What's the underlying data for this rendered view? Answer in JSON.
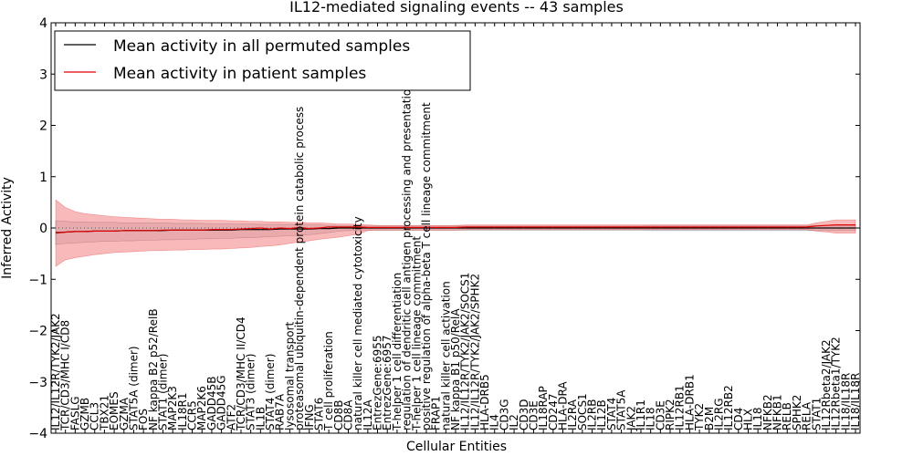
{
  "chart_data": {
    "type": "line",
    "title": "IL12-mediated signaling events -- 43 samples",
    "xlabel": "Cellular Entities",
    "ylabel": "Inferred Activity",
    "ylim": [
      -4,
      4
    ],
    "yticks": [
      "4",
      "3",
      "2",
      "1",
      "0",
      "−1",
      "−2",
      "−3",
      "−4"
    ],
    "grid": false,
    "legend_position": "top-left",
    "categories": [
      "IL12/IL12R/TYK2/JAK2",
      "TCR/CD3/MHC I/CD8",
      "FASLG",
      "GZMB",
      "CCL3",
      "TBX21",
      "EOMES",
      "GZMA",
      "STAT5A (dimer)",
      "FOS",
      "NF kappa B2 p52/RelB",
      "STAT1 (dimer)",
      "MAP2K3",
      "IL18R1",
      "CCR5",
      "MAP2K6",
      "GADD45B",
      "GADD45G",
      "ATF2",
      "TCR/CD3/MHC II/CD4",
      "STAT3 (dimer)",
      "IL1B",
      "STAT4 (dimer)",
      "RAB7A",
      "lysosomal transport",
      "proteasomal ubiquitin-dependent protein catabolic process",
      "IFNG",
      "STAT6",
      "T cell proliferation",
      "CD8B",
      "CD8A",
      "natural killer cell mediated cytotoxicity",
      "IL12A",
      "EntrezGene:6955",
      "EntrezGene:6957",
      "T-helper 1 cell differentiation",
      "regulation of dendritic cell antigen processing and presentation",
      "T-helper 1 cell lineage commitment",
      "positive regulation of alpha-beta T cell lineage commitment",
      "FRAP1",
      "natural killer cell activation",
      "NF kappa B1 p50/RelA",
      "IL12/IL12R/TYK2/JAK2/SOCS1",
      "IL12/IL12R/TYK2/JAK2/SPHK2",
      "HLA-DRB5",
      "IL4",
      "CD3G",
      "IL2",
      "CD3D",
      "CD3E",
      "IL18RAP",
      "CD247",
      "HLA-DRA",
      "IL2RA",
      "SOCS1",
      "IL2RB",
      "IL12B",
      "STAT4",
      "STAT5A",
      "JAK2",
      "IL1R1",
      "IL18",
      "CD3E",
      "RIPK2",
      "IL12RB1",
      "HLA-DRB1",
      "TYK2",
      "B2M",
      "IL2RG",
      "IL12RB2",
      "CD4",
      "HLX",
      "IL18",
      "NFKB2",
      "NFKB1",
      "RELB",
      "SPHK2",
      "RELA",
      "STAT1",
      "IL12Rbeta2/JAK2",
      "IL12Rbeta1/TYK2",
      "IL18/IL18R",
      "IL18/IL18R"
    ],
    "series": [
      {
        "name": "Mean activity in all permuted samples",
        "color": "#000000",
        "values": [
          -0.09,
          -0.08,
          -0.07,
          -0.07,
          -0.06,
          -0.06,
          -0.06,
          -0.05,
          -0.05,
          -0.05,
          -0.05,
          -0.05,
          -0.04,
          -0.04,
          -0.04,
          -0.04,
          -0.04,
          -0.04,
          -0.04,
          -0.03,
          -0.03,
          -0.03,
          -0.03,
          -0.02,
          -0.02,
          -0.02,
          -0.02,
          -0.01,
          -0.01,
          0.0,
          0.0,
          0.0,
          0.0,
          0.0,
          0.0,
          0.0,
          0.0,
          0.0,
          0.0,
          0.0,
          0.0,
          0.0,
          0.0,
          0.0,
          0.0,
          0.0,
          0.0,
          0.0,
          0.0,
          0.0,
          0.0,
          0.0,
          0.0,
          0.0,
          0.0,
          0.0,
          0.0,
          0.0,
          0.0,
          0.0,
          0.0,
          0.0,
          0.0,
          0.0,
          0.0,
          0.0,
          0.0,
          0.0,
          0.0,
          0.0,
          0.0,
          0.0,
          0.0,
          0.0,
          0.0,
          0.0,
          0.0,
          0.0,
          0.0,
          0.0,
          0.0,
          0.0,
          0.0
        ],
        "band_lower": [
          -0.32,
          -0.3,
          -0.29,
          -0.28,
          -0.27,
          -0.26,
          -0.26,
          -0.25,
          -0.25,
          -0.24,
          -0.24,
          -0.23,
          -0.23,
          -0.22,
          -0.22,
          -0.21,
          -0.21,
          -0.2,
          -0.2,
          -0.19,
          -0.19,
          -0.18,
          -0.17,
          -0.16,
          -0.15,
          -0.14,
          -0.13,
          -0.11,
          -0.09,
          -0.06,
          -0.05,
          -0.05,
          -0.04,
          -0.04,
          -0.04,
          -0.04,
          -0.04,
          -0.04,
          -0.04,
          -0.04,
          -0.04,
          -0.04,
          -0.04,
          -0.04,
          -0.04,
          -0.04,
          -0.04,
          -0.04,
          -0.04,
          -0.04,
          -0.04,
          -0.04,
          -0.04,
          -0.04,
          -0.04,
          -0.04,
          -0.04,
          -0.04,
          -0.04,
          -0.04,
          -0.04,
          -0.05,
          -0.05,
          -0.05,
          -0.05,
          -0.05,
          -0.05,
          -0.05,
          -0.05,
          -0.05,
          -0.05,
          -0.05,
          -0.05,
          -0.05,
          -0.05,
          -0.05,
          -0.05,
          -0.05,
          -0.05,
          -0.05,
          -0.05,
          -0.05,
          -0.05
        ],
        "band_upper": [
          0.14,
          0.13,
          0.12,
          0.12,
          0.11,
          0.11,
          0.11,
          0.1,
          0.1,
          0.1,
          0.1,
          0.1,
          0.09,
          0.09,
          0.09,
          0.09,
          0.08,
          0.08,
          0.08,
          0.08,
          0.08,
          0.07,
          0.07,
          0.07,
          0.07,
          0.06,
          0.06,
          0.06,
          0.05,
          0.05,
          0.05,
          0.04,
          0.04,
          0.04,
          0.04,
          0.04,
          0.04,
          0.04,
          0.04,
          0.04,
          0.04,
          0.04,
          0.04,
          0.04,
          0.04,
          0.04,
          0.04,
          0.04,
          0.04,
          0.04,
          0.04,
          0.04,
          0.04,
          0.04,
          0.04,
          0.04,
          0.04,
          0.04,
          0.04,
          0.04,
          0.04,
          0.05,
          0.05,
          0.05,
          0.05,
          0.05,
          0.05,
          0.05,
          0.05,
          0.05,
          0.05,
          0.05,
          0.05,
          0.05,
          0.05,
          0.05,
          0.05,
          0.05,
          0.05,
          0.05,
          0.05,
          0.05,
          0.05
        ],
        "band_color": "#c8c8d2"
      },
      {
        "name": "Mean activity in patient samples",
        "color": "#e00000",
        "values": [
          -0.1,
          -0.08,
          -0.07,
          -0.07,
          -0.06,
          -0.06,
          -0.06,
          -0.05,
          -0.05,
          -0.05,
          -0.05,
          -0.04,
          -0.04,
          -0.04,
          -0.04,
          -0.04,
          -0.03,
          -0.03,
          -0.03,
          -0.02,
          -0.01,
          0.0,
          -0.02,
          0.0,
          -0.01,
          0.01,
          -0.01,
          0.0,
          0.02,
          0.02,
          0.02,
          0.02,
          0.01,
          0.01,
          0.01,
          0.01,
          0.01,
          0.01,
          0.01,
          0.01,
          0.01,
          0.01,
          0.02,
          0.02,
          0.02,
          0.02,
          0.02,
          0.02,
          0.02,
          0.02,
          0.02,
          0.02,
          0.02,
          0.02,
          0.02,
          0.02,
          0.02,
          0.02,
          0.02,
          0.02,
          0.02,
          0.02,
          0.02,
          0.02,
          0.02,
          0.02,
          0.02,
          0.02,
          0.02,
          0.02,
          0.02,
          0.02,
          0.02,
          0.02,
          0.02,
          0.02,
          0.02,
          0.02,
          0.04,
          0.05,
          0.06,
          0.06,
          0.06
        ],
        "band_lower": [
          -0.75,
          -0.62,
          -0.58,
          -0.55,
          -0.52,
          -0.5,
          -0.48,
          -0.47,
          -0.46,
          -0.45,
          -0.44,
          -0.44,
          -0.43,
          -0.43,
          -0.42,
          -0.42,
          -0.41,
          -0.41,
          -0.4,
          -0.39,
          -0.38,
          -0.36,
          -0.35,
          -0.33,
          -0.3,
          -0.27,
          -0.25,
          -0.22,
          -0.2,
          -0.18,
          -0.15,
          -0.12,
          -0.05,
          -0.04,
          -0.04,
          -0.04,
          -0.04,
          -0.04,
          -0.04,
          -0.04,
          -0.04,
          -0.04,
          -0.03,
          -0.03,
          -0.03,
          -0.03,
          -0.03,
          -0.03,
          -0.03,
          -0.03,
          -0.03,
          -0.03,
          -0.03,
          -0.03,
          -0.03,
          -0.03,
          -0.03,
          -0.03,
          -0.03,
          -0.03,
          -0.03,
          -0.03,
          -0.03,
          -0.03,
          -0.03,
          -0.03,
          -0.03,
          -0.03,
          -0.03,
          -0.03,
          -0.03,
          -0.03,
          -0.03,
          -0.03,
          -0.03,
          -0.03,
          -0.03,
          -0.03,
          -0.06,
          -0.08,
          -0.1,
          -0.1,
          -0.1
        ],
        "band_upper": [
          0.55,
          0.4,
          0.32,
          0.28,
          0.26,
          0.24,
          0.22,
          0.21,
          0.2,
          0.19,
          0.18,
          0.17,
          0.17,
          0.16,
          0.16,
          0.15,
          0.15,
          0.15,
          0.14,
          0.14,
          0.13,
          0.13,
          0.12,
          0.12,
          0.11,
          0.11,
          0.1,
          0.1,
          0.09,
          0.08,
          0.08,
          0.07,
          0.06,
          0.05,
          0.05,
          0.05,
          0.05,
          0.05,
          0.05,
          0.05,
          0.05,
          0.05,
          0.06,
          0.06,
          0.06,
          0.06,
          0.06,
          0.06,
          0.06,
          0.06,
          0.06,
          0.06,
          0.06,
          0.06,
          0.06,
          0.06,
          0.06,
          0.06,
          0.06,
          0.06,
          0.06,
          0.06,
          0.06,
          0.06,
          0.06,
          0.06,
          0.06,
          0.06,
          0.06,
          0.06,
          0.06,
          0.06,
          0.06,
          0.06,
          0.06,
          0.06,
          0.06,
          0.06,
          0.1,
          0.13,
          0.16,
          0.16,
          0.16
        ],
        "band_color": "#f08080"
      }
    ],
    "reference_line": {
      "value": 0,
      "style": "dotted"
    }
  }
}
